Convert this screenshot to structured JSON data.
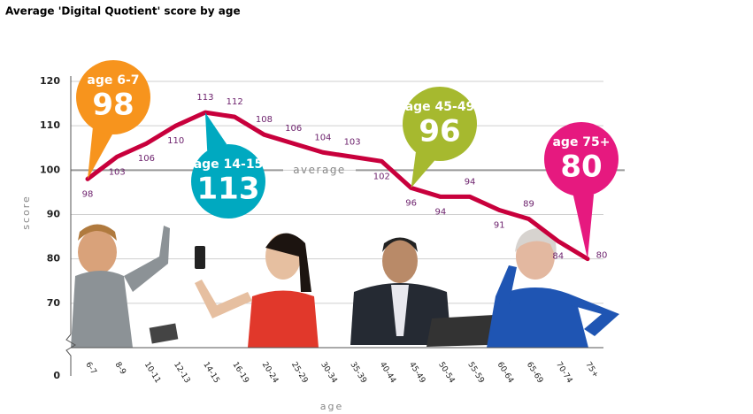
{
  "chart_data": {
    "type": "line",
    "title": "Average 'Digital Quotient' score by age",
    "x_label": "age",
    "y_label": "score",
    "categories": [
      "6-7",
      "8-9",
      "10-11",
      "12-13",
      "14-15",
      "16-19",
      "20-24",
      "25-29",
      "30-34",
      "35-39",
      "40-44",
      "45-49",
      "50-54",
      "55-59",
      "60-64",
      "65-69",
      "70-74",
      "75+"
    ],
    "series": [
      {
        "name": "score",
        "color": "#c8003c",
        "values": [
          98,
          103,
          106,
          110,
          113,
          112,
          108,
          106,
          104,
          103,
          102,
          96,
          94,
          94,
          91,
          89,
          84,
          80
        ]
      }
    ],
    "ylim": [
      60,
      120
    ],
    "yticks": [
      0,
      70,
      80,
      90,
      100,
      110,
      120
    ],
    "y_axis_break": true,
    "grid": true,
    "average_line": {
      "value": 100,
      "label": "average"
    },
    "annotations": [
      {
        "label": "age 6-7",
        "value": 98,
        "color": "#f7941d"
      },
      {
        "label": "age 14-15",
        "value": 113,
        "color": "#00a9c0"
      },
      {
        "label": "age 45-49",
        "value": 96,
        "color": "#a6b92f"
      },
      {
        "label": "age 75+",
        "value": 80,
        "color": "#e6197f"
      }
    ]
  }
}
